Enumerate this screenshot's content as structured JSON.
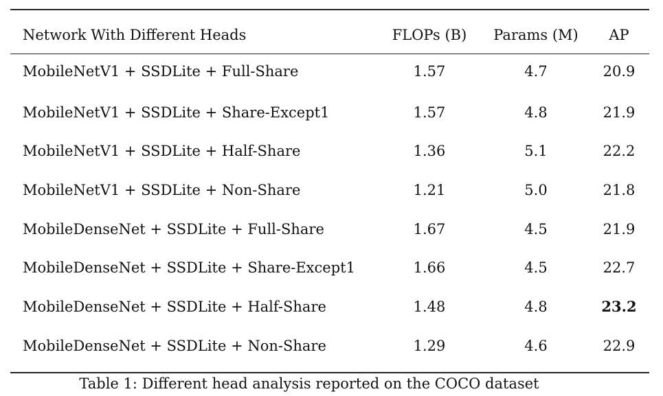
{
  "table": {
    "headers": {
      "name": "Network With Different Heads",
      "flops": "FLOPs (B)",
      "params": "Params (M)",
      "ap": "AP"
    },
    "rows": [
      {
        "name": "MobileNetV1 + SSDLite + Full-Share",
        "flops": "1.57",
        "params": "4.7",
        "ap": "20.9",
        "ap_bold": false
      },
      {
        "name": "MobileNetV1 + SSDLite + Share-Except1",
        "flops": "1.57",
        "params": "4.8",
        "ap": "21.9",
        "ap_bold": false
      },
      {
        "name": "MobileNetV1 + SSDLite + Half-Share",
        "flops": "1.36",
        "params": "5.1",
        "ap": "22.2",
        "ap_bold": false
      },
      {
        "name": "MobileNetV1 + SSDLite + Non-Share",
        "flops": "1.21",
        "params": "5.0",
        "ap": "21.8",
        "ap_bold": false
      },
      {
        "name": "MobileDenseNet + SSDLite + Full-Share",
        "flops": "1.67",
        "params": "4.5",
        "ap": "21.9",
        "ap_bold": false
      },
      {
        "name": "MobileDenseNet + SSDLite + Share-Except1",
        "flops": "1.66",
        "params": "4.5",
        "ap": "22.7",
        "ap_bold": false
      },
      {
        "name": "MobileDenseNet + SSDLite + Half-Share",
        "flops": "1.48",
        "params": "4.8",
        "ap": "23.2",
        "ap_bold": true
      },
      {
        "name": "MobileDenseNet + SSDLite + Non-Share",
        "flops": "1.29",
        "params": "4.6",
        "ap": "22.9",
        "ap_bold": false
      }
    ],
    "caption": "Table 1: Different head analysis reported on the COCO dataset"
  }
}
